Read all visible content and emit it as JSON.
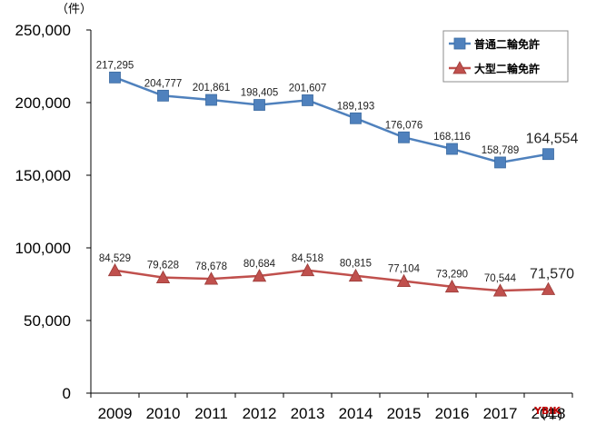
{
  "chart_data": {
    "type": "line",
    "y_unit_label": "（件）",
    "x_unit_label": "(年)",
    "ylim": [
      0,
      250000
    ],
    "yticks": [
      "0",
      "50,000",
      "100,000",
      "150,000",
      "200,000",
      "250,000"
    ],
    "ytick_values": [
      0,
      50000,
      100000,
      150000,
      200000,
      250000
    ],
    "categories": [
      "2009",
      "2010",
      "2011",
      "2012",
      "2013",
      "2014",
      "2015",
      "2016",
      "2017",
      "2018"
    ],
    "legend_position": "top-right",
    "grid": false,
    "series": [
      {
        "name": "普通二輪免許",
        "color": "#4f81bd",
        "marker": "square",
        "values": [
          217295,
          204777,
          201861,
          198405,
          201607,
          189193,
          176076,
          168116,
          158789,
          164554
        ],
        "labels": [
          "217,295",
          "204,777",
          "201,861",
          "198,405",
          "201,607",
          "189,193",
          "176,076",
          "168,116",
          "158,789",
          "164,554"
        ]
      },
      {
        "name": "大型二輪免許",
        "color": "#c0504d",
        "marker": "triangle",
        "values": [
          84529,
          79628,
          78678,
          80684,
          84518,
          80815,
          77104,
          73290,
          70544,
          71570
        ],
        "labels": [
          "84,529",
          "79,628",
          "78,678",
          "80,684",
          "84,518",
          "80,815",
          "77,104",
          "73,290",
          "70,544",
          "71,570"
        ]
      }
    ]
  },
  "watermark": "YBIK"
}
